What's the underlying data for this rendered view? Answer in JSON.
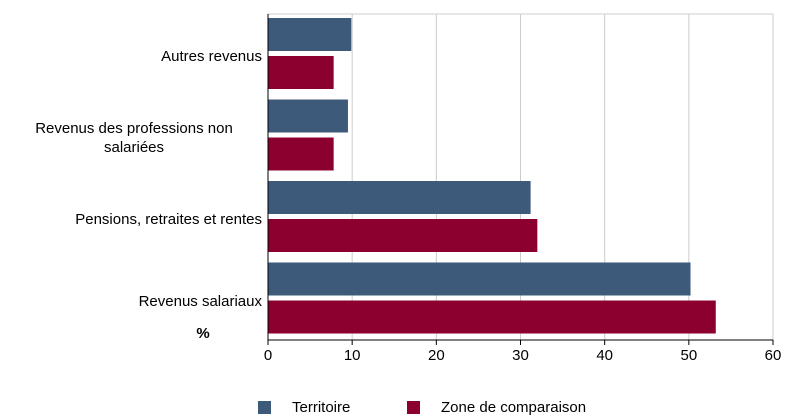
{
  "chart_data": {
    "type": "bar",
    "orientation": "horizontal",
    "categories": [
      "Autres revenus",
      "Revenus des professions non salariées",
      "Pensions, retraites et rentes",
      "Revenus salariaux"
    ],
    "series": [
      {
        "name": "Territoire",
        "color": "#3d5a7a",
        "values": [
          9.9,
          9.5,
          31.2,
          50.2
        ]
      },
      {
        "name": "Zone de comparaison",
        "color": "#8c0030",
        "values": [
          7.8,
          7.8,
          32.0,
          53.2
        ]
      }
    ],
    "axis_label": "%",
    "xlim": [
      0,
      60
    ],
    "xticks": [
      0,
      10,
      20,
      30,
      40,
      50,
      60
    ],
    "grid": true,
    "legend": "bottom"
  }
}
